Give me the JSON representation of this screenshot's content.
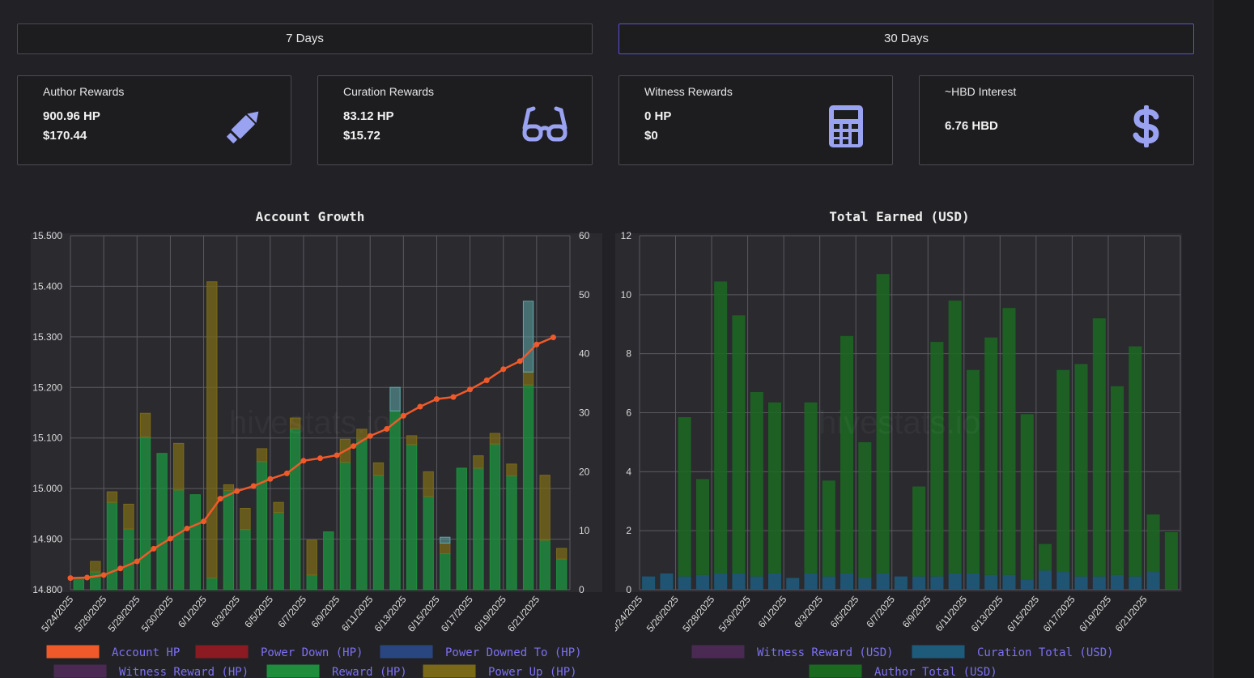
{
  "buttons": {
    "days7": "7 Days",
    "days30": "30 Days"
  },
  "cards": [
    {
      "title": "Author Rewards",
      "line1": "900.96 HP",
      "line2": "$170.44",
      "icon": "pencil-icon"
    },
    {
      "title": "Curation Rewards",
      "line1": "83.12 HP",
      "line2": "$15.72",
      "icon": "glasses-icon"
    },
    {
      "title": "Witness Rewards",
      "line1": "0 HP",
      "line2": "$0",
      "icon": "calculator-icon"
    },
    {
      "title": "~HBD Interest",
      "line1": "6.76 HBD",
      "line2": "",
      "icon": "dollar-icon"
    }
  ],
  "colors": {
    "account_hp": "#f05a2a",
    "power_down": "#8b1a22",
    "power_downed_to": "#2a4680",
    "witness_reward": "#4a2a52",
    "reward": "#1e8e3e",
    "power_up": "#7a6a18",
    "curation": "#1e5a7a",
    "author_total": "#1c6a22"
  },
  "watermark": "hivestats.io",
  "chart_data": [
    {
      "type": "bar",
      "title": "Account Growth",
      "x": [
        "5/24/2025",
        "5/25/2025",
        "5/26/2025",
        "5/27/2025",
        "5/28/2025",
        "5/29/2025",
        "5/30/2025",
        "5/31/2025",
        "6/1/2025",
        "6/2/2025",
        "6/3/2025",
        "6/4/2025",
        "6/5/2025",
        "6/6/2025",
        "6/7/2025",
        "6/8/2025",
        "6/9/2025",
        "6/10/2025",
        "6/11/2025",
        "6/12/2025",
        "6/13/2025",
        "6/14/2025",
        "6/15/2025",
        "6/16/2025",
        "6/17/2025",
        "6/18/2025",
        "6/19/2025",
        "6/20/2025",
        "6/21/2025",
        "6/22/2025"
      ],
      "x_tick_labels": [
        "5/24/2025",
        "5/26/2025",
        "5/28/2025",
        "5/30/2025",
        "6/1/2025",
        "6/3/2025",
        "6/5/2025",
        "6/7/2025",
        "6/9/2025",
        "6/11/2025",
        "6/13/2025",
        "6/15/2025",
        "6/17/2025",
        "6/19/2025",
        "6/21/2025"
      ],
      "y_left": {
        "ticks": [
          "14.800",
          "14.900",
          "15.000",
          "15.100",
          "15.200",
          "15.300",
          "15.400",
          "15.500"
        ],
        "range": [
          14.8,
          15.5
        ]
      },
      "y_right": {
        "ticks": [
          "0",
          "10",
          "20",
          "30",
          "40",
          "50",
          "60"
        ],
        "range": [
          0,
          60
        ]
      },
      "series": [
        {
          "name": "Account HP",
          "kind": "line",
          "axis": "left",
          "values": [
            14.823,
            14.824,
            14.829,
            14.842,
            14.856,
            14.881,
            14.901,
            14.921,
            14.935,
            14.98,
            14.995,
            15.005,
            15.019,
            15.03,
            15.055,
            15.06,
            15.066,
            15.084,
            15.104,
            15.118,
            15.144,
            15.162,
            15.177,
            15.181,
            15.196,
            15.214,
            15.236,
            15.252,
            15.285,
            15.299
          ]
        },
        {
          "name": "Power Down (HP)",
          "kind": "bar",
          "axis": "right",
          "values": [
            0,
            0,
            0,
            0,
            0,
            0,
            0,
            0,
            0,
            0,
            0,
            0,
            0,
            0,
            0,
            0,
            0,
            0,
            0,
            0,
            0,
            0,
            0,
            0,
            0,
            0,
            0,
            0,
            0,
            0
          ]
        },
        {
          "name": "Power Downed To (HP)",
          "kind": "bar",
          "axis": "right",
          "values": [
            0,
            0,
            0,
            0,
            0,
            0,
            0,
            0,
            0,
            0,
            0,
            0,
            0,
            0,
            0,
            0,
            0,
            0,
            0,
            4,
            0,
            0,
            1,
            0,
            0,
            0,
            0,
            12,
            0,
            0
          ]
        },
        {
          "name": "Witness Reward (HP)",
          "kind": "bar",
          "axis": "right",
          "values": [
            0,
            0,
            0,
            0,
            0,
            0,
            0,
            0,
            0,
            0,
            0,
            0,
            0,
            0,
            0,
            0,
            0,
            0,
            0,
            0,
            0,
            0,
            0,
            0,
            0,
            0,
            0,
            0,
            0,
            0
          ]
        },
        {
          "name": "Reward (HP)",
          "kind": "bar",
          "axis": "right",
          "values": [
            2,
            3,
            14.8,
            10.3,
            25.9,
            23.1,
            16.9,
            16.1,
            2,
            16.8,
            10.2,
            21.7,
            13.1,
            27.3,
            2.5,
            9.8,
            21.6,
            25.4,
            19.4,
            30.3,
            24.6,
            15.8,
            6.1,
            20.6,
            20.6,
            24.7,
            19.3,
            34.7,
            8.4,
            5.2
          ]
        },
        {
          "name": "Power Up (HP)",
          "kind": "bar",
          "axis": "right",
          "values": [
            0,
            1.8,
            1.8,
            4.2,
            4,
            0,
            7.9,
            0,
            50.2,
            1,
            3.6,
            2.2,
            1.7,
            1.8,
            5.9,
            0,
            3.9,
            1.8,
            2.1,
            0,
            1.5,
            4.2,
            1.8,
            0,
            2.1,
            1.8,
            2,
            2.2,
            11,
            1.8
          ]
        }
      ],
      "legend": [
        "Account HP",
        "Power Down (HP)",
        "Power Downed To (HP)",
        "Witness Reward (HP)",
        "Reward (HP)",
        "Power Up (HP)"
      ],
      "legend_position": "bottom",
      "grid": true
    },
    {
      "type": "bar",
      "title": "Total Earned (USD)",
      "x": [
        "5/24/2025",
        "5/25/2025",
        "5/26/2025",
        "5/27/2025",
        "5/28/2025",
        "5/29/2025",
        "5/30/2025",
        "5/31/2025",
        "6/1/2025",
        "6/2/2025",
        "6/3/2025",
        "6/4/2025",
        "6/5/2025",
        "6/6/2025",
        "6/7/2025",
        "6/8/2025",
        "6/9/2025",
        "6/10/2025",
        "6/11/2025",
        "6/12/2025",
        "6/13/2025",
        "6/14/2025",
        "6/15/2025",
        "6/16/2025",
        "6/17/2025",
        "6/18/2025",
        "6/19/2025",
        "6/20/2025",
        "6/21/2025",
        "6/22/2025"
      ],
      "x_tick_labels": [
        "5/24/2025",
        "5/26/2025",
        "5/28/2025",
        "5/30/2025",
        "6/1/2025",
        "6/3/2025",
        "6/5/2025",
        "6/7/2025",
        "6/9/2025",
        "6/11/2025",
        "6/13/2025",
        "6/15/2025",
        "6/17/2025",
        "6/19/2025",
        "6/21/2025"
      ],
      "y": {
        "ticks": [
          "0",
          "2",
          "4",
          "6",
          "8",
          "10",
          "12"
        ],
        "range": [
          0,
          12
        ]
      },
      "series": [
        {
          "name": "Witness Reward (USD)",
          "values": [
            0,
            0,
            0,
            0,
            0,
            0,
            0,
            0,
            0,
            0,
            0,
            0,
            0,
            0,
            0,
            0,
            0,
            0,
            0,
            0,
            0,
            0,
            0,
            0,
            0,
            0,
            0,
            0,
            0,
            0
          ]
        },
        {
          "name": "Curation Total (USD)",
          "values": [
            0.45,
            0.55,
            0.45,
            0.5,
            0.55,
            0.55,
            0.45,
            0.55,
            0.4,
            0.55,
            0.45,
            0.55,
            0.4,
            0.55,
            0.45,
            0.45,
            0.45,
            0.55,
            0.55,
            0.5,
            0.5,
            0.35,
            0.65,
            0.6,
            0.45,
            0.45,
            0.5,
            0.45,
            0.6,
            0
          ]
        },
        {
          "name": "Author Total (USD)",
          "values": [
            0,
            0,
            5.4,
            3.25,
            9.9,
            8.75,
            6.25,
            5.8,
            0,
            5.8,
            3.25,
            8.05,
            4.6,
            10.15,
            0,
            3.05,
            7.95,
            9.25,
            6.9,
            8.05,
            9.05,
            5.6,
            0.9,
            6.85,
            7.2,
            8.75,
            6.4,
            7.8,
            1.95,
            1.95
          ]
        }
      ],
      "legend": [
        "Witness Reward (USD)",
        "Curation Total (USD)",
        "Author Total (USD)"
      ],
      "legend_position": "bottom",
      "grid": true
    }
  ]
}
